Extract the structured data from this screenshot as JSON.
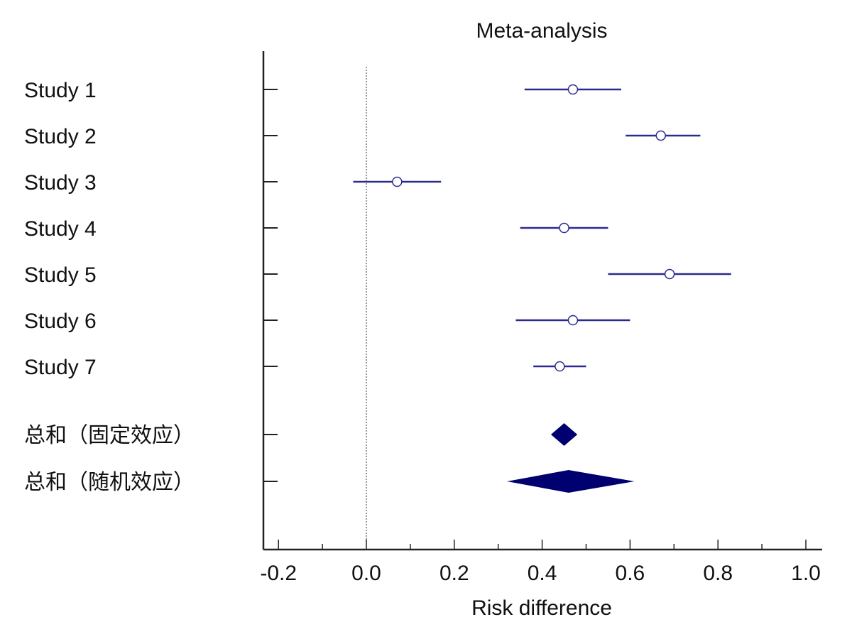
{
  "chart_data": {
    "type": "forest",
    "title": "Meta-analysis",
    "xlabel": "Risk difference",
    "xlim": [
      -0.2,
      1.0
    ],
    "xticks": [
      "-0.2",
      "0.0",
      "0.2",
      "0.4",
      "0.6",
      "0.8",
      "1.0"
    ],
    "reference_line": 0.0,
    "studies": [
      {
        "label": "Study 1",
        "estimate": 0.47,
        "ci": [
          0.36,
          0.58
        ]
      },
      {
        "label": "Study 2",
        "estimate": 0.67,
        "ci": [
          0.59,
          0.76
        ]
      },
      {
        "label": "Study 3",
        "estimate": 0.07,
        "ci": [
          -0.03,
          0.17
        ]
      },
      {
        "label": "Study 4",
        "estimate": 0.45,
        "ci": [
          0.35,
          0.55
        ]
      },
      {
        "label": "Study 5",
        "estimate": 0.69,
        "ci": [
          0.55,
          0.83
        ]
      },
      {
        "label": "Study 6",
        "estimate": 0.47,
        "ci": [
          0.34,
          0.6
        ]
      },
      {
        "label": "Study 7",
        "estimate": 0.44,
        "ci": [
          0.38,
          0.5
        ]
      }
    ],
    "pooled": [
      {
        "label": "总和（固定效应）",
        "estimate": 0.45,
        "ci": [
          0.42,
          0.48
        ]
      },
      {
        "label": "总和（随机效应）",
        "estimate": 0.46,
        "ci": [
          0.32,
          0.61
        ]
      }
    ],
    "colors": {
      "ci_line": "#2b2b8f",
      "marker_fill": "#ffffff",
      "diamond": "#000070",
      "axis": "#222222"
    }
  }
}
